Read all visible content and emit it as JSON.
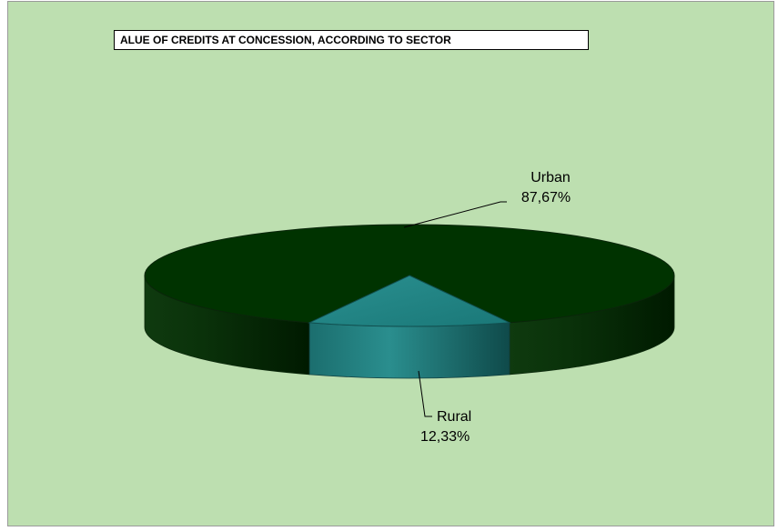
{
  "chart_data": {
    "type": "pie",
    "title": "ALUE OF CREDITS AT CONCESSION, ACCORDING TO SECTOR",
    "three_d": true,
    "categories": [
      "Urban",
      "Rural"
    ],
    "values": [
      87.67,
      12.33
    ],
    "value_labels": [
      "87,67%",
      "12,33%"
    ],
    "colors": [
      "#003300",
      "#1f8080"
    ]
  },
  "colors": {
    "background": "#bddfb0",
    "title_border": "#000000"
  }
}
